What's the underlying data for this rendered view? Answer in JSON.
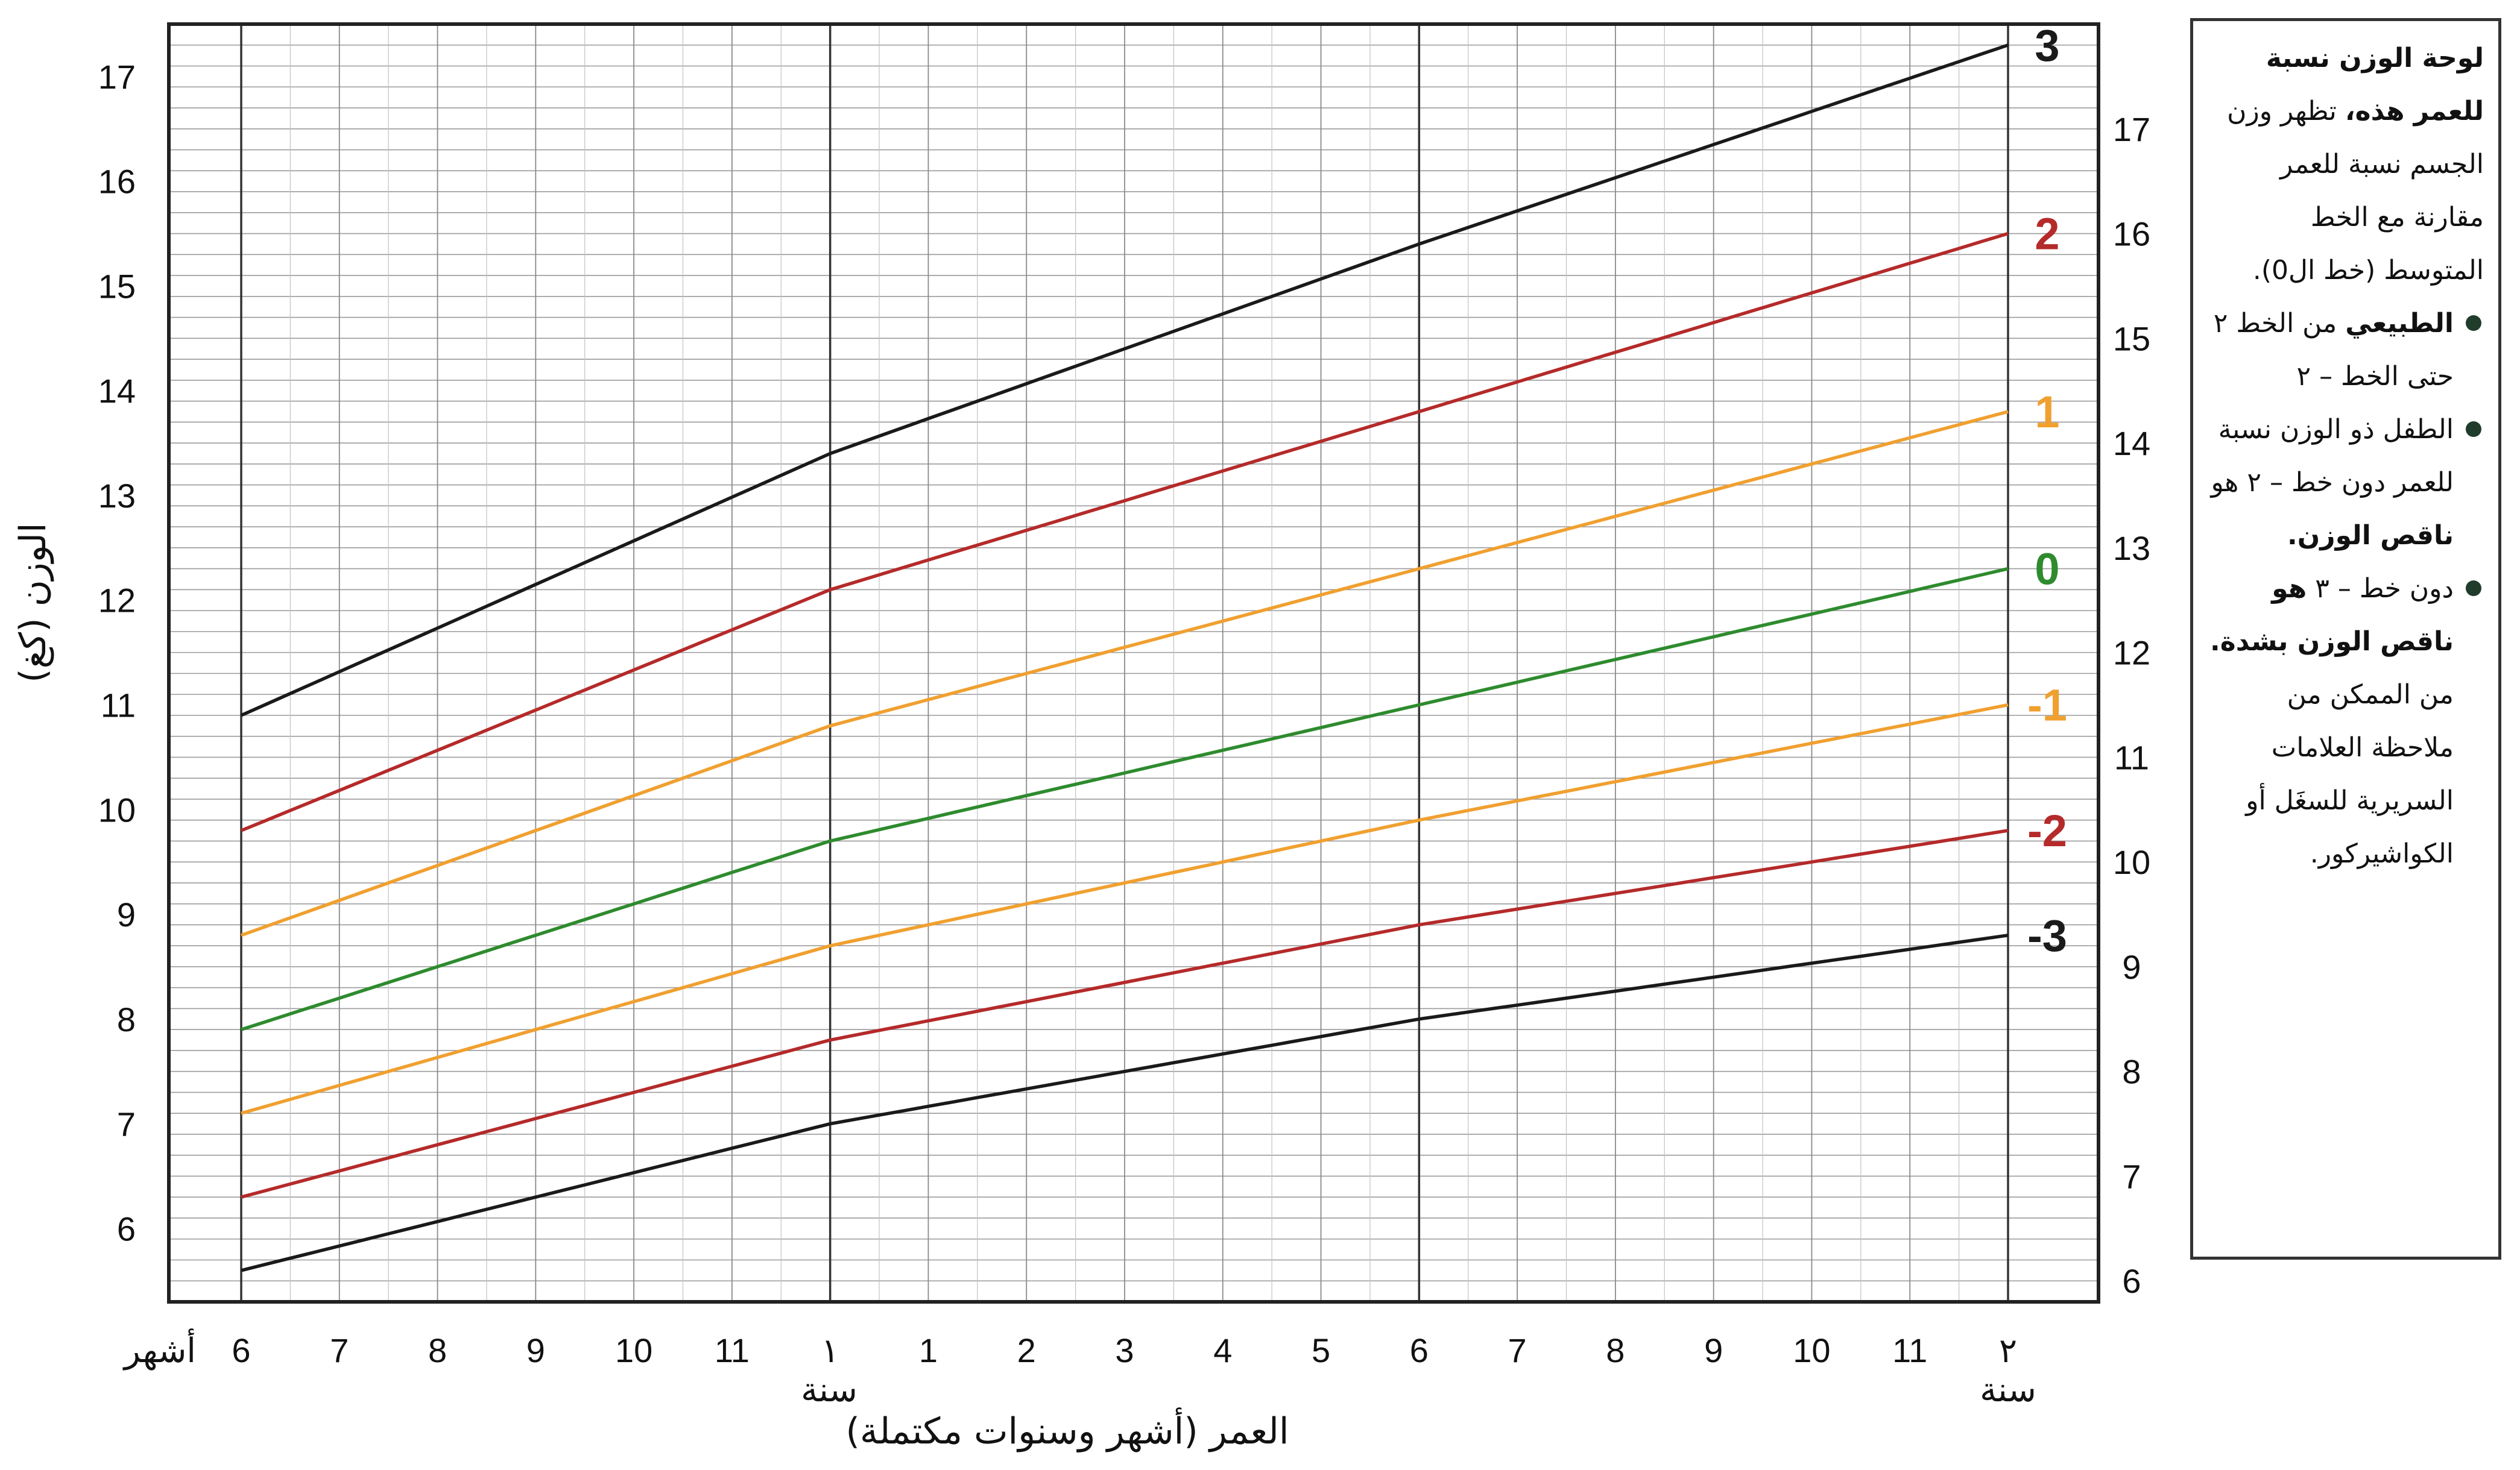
{
  "chart_data": {
    "type": "line",
    "title": "",
    "ylabel": "الوزن (كغ)",
    "xlabel": "العمر (أشهر وسنوات مكتملة)",
    "ylim": [
      5.3,
      17.5
    ],
    "xlim": [
      6,
      24
    ],
    "y_ticks": [
      6,
      7,
      8,
      9,
      10,
      11,
      12,
      13,
      14,
      15,
      16,
      17
    ],
    "y_ticks_right": [
      6,
      7,
      8,
      9,
      10,
      11,
      12,
      13,
      14,
      15,
      16,
      17
    ],
    "x_ticks": [
      {
        "x": 6,
        "label": "6"
      },
      {
        "x": 7,
        "label": "7"
      },
      {
        "x": 8,
        "label": "8"
      },
      {
        "x": 9,
        "label": "9"
      },
      {
        "x": 10,
        "label": "10"
      },
      {
        "x": 11,
        "label": "11"
      },
      {
        "x": 12,
        "label": "١"
      },
      {
        "x": 13,
        "label": "1"
      },
      {
        "x": 14,
        "label": "2"
      },
      {
        "x": 15,
        "label": "3"
      },
      {
        "x": 16,
        "label": "4"
      },
      {
        "x": 17,
        "label": "5"
      },
      {
        "x": 18,
        "label": "6"
      },
      {
        "x": 19,
        "label": "7"
      },
      {
        "x": 20,
        "label": "8"
      },
      {
        "x": 21,
        "label": "9"
      },
      {
        "x": 22,
        "label": "10"
      },
      {
        "x": 23,
        "label": "11"
      },
      {
        "x": 24,
        "label": "٢"
      }
    ],
    "x_unit_months": "أشهر",
    "x_unit_years": [
      "سنة",
      "سنة"
    ],
    "x": [
      6,
      12,
      18,
      24
    ],
    "series": [
      {
        "name": "3",
        "color": "#1a1a1a",
        "values": [
          10.9,
          13.4,
          15.4,
          17.3
        ]
      },
      {
        "name": "2",
        "color": "#b52a2a",
        "values": [
          9.8,
          12.1,
          13.8,
          15.5
        ]
      },
      {
        "name": "1",
        "color": "#f0a030",
        "values": [
          8.8,
          10.8,
          12.3,
          13.8
        ]
      },
      {
        "name": "0",
        "color": "#2e8b2e",
        "values": [
          7.9,
          9.7,
          11.0,
          12.3
        ]
      },
      {
        "name": "-1",
        "color": "#f0a030",
        "values": [
          7.1,
          8.7,
          9.9,
          11.0
        ]
      },
      {
        "name": "-2",
        "color": "#b52a2a",
        "values": [
          6.3,
          7.8,
          8.9,
          9.8
        ]
      },
      {
        "name": "-3",
        "color": "#1a1a1a",
        "values": [
          5.6,
          7.0,
          8.0,
          8.8
        ]
      }
    ],
    "grid": true
  },
  "info": {
    "intro_bold": "لوحة الوزن نسبة للعمر هذه،",
    "intro_rest": "تظهر وزن الجسم نسبة للعمر مقارنة مع الخط المتوسط (خط ال0).",
    "bullet1_bold": "الطبيعي",
    "bullet1_rest": "من الخط ٢ حتى الخط – ٢",
    "bullet2_text": "الطفل ذو الوزن نسبة للعمر دون خط – ٢ هو",
    "bullet2_bold": "ناقص الوزن.",
    "bullet3_text": "دون خط – ٣",
    "bullet3_bold": "هو ناقص الوزن بشدة.",
    "bullet3_rest": "من الممكن من ملاحظة العلامات السريرية للسغَل أو الكواشيركور."
  }
}
